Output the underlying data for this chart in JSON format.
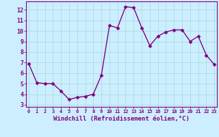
{
  "x": [
    0,
    1,
    2,
    3,
    4,
    5,
    6,
    7,
    8,
    9,
    10,
    11,
    12,
    13,
    14,
    15,
    16,
    17,
    18,
    19,
    20,
    21,
    22,
    23
  ],
  "y": [
    6.9,
    5.1,
    5.0,
    5.0,
    4.3,
    3.5,
    3.7,
    3.8,
    4.0,
    5.8,
    10.5,
    10.3,
    12.3,
    12.2,
    10.3,
    8.6,
    9.5,
    9.9,
    10.1,
    10.1,
    9.0,
    9.5,
    7.7,
    6.8
  ],
  "line_color": "#800080",
  "marker": "D",
  "markersize": 2.5,
  "linewidth": 1.0,
  "bg_color": "#cceeff",
  "grid_color": "#aadddd",
  "axis_color": "#800080",
  "tick_color": "#800080",
  "xlabel": "Windchill (Refroidissement éolien,°C)",
  "xlabel_fontsize": 6.5,
  "xtick_fontsize": 5.0,
  "ytick_fontsize": 6.0,
  "xtick_labels": [
    "0",
    "1",
    "2",
    "3",
    "4",
    "5",
    "6",
    "7",
    "8",
    "9",
    "10",
    "11",
    "12",
    "13",
    "14",
    "15",
    "16",
    "17",
    "18",
    "19",
    "20",
    "21",
    "22",
    "23"
  ],
  "ytick_vals": [
    3,
    4,
    5,
    6,
    7,
    8,
    9,
    10,
    11,
    12
  ],
  "ytick_labels": [
    "3",
    "4",
    "5",
    "6",
    "7",
    "8",
    "9",
    "10",
    "11",
    "12"
  ],
  "ylim": [
    2.8,
    12.8
  ],
  "xlim": [
    -0.3,
    23.3
  ]
}
